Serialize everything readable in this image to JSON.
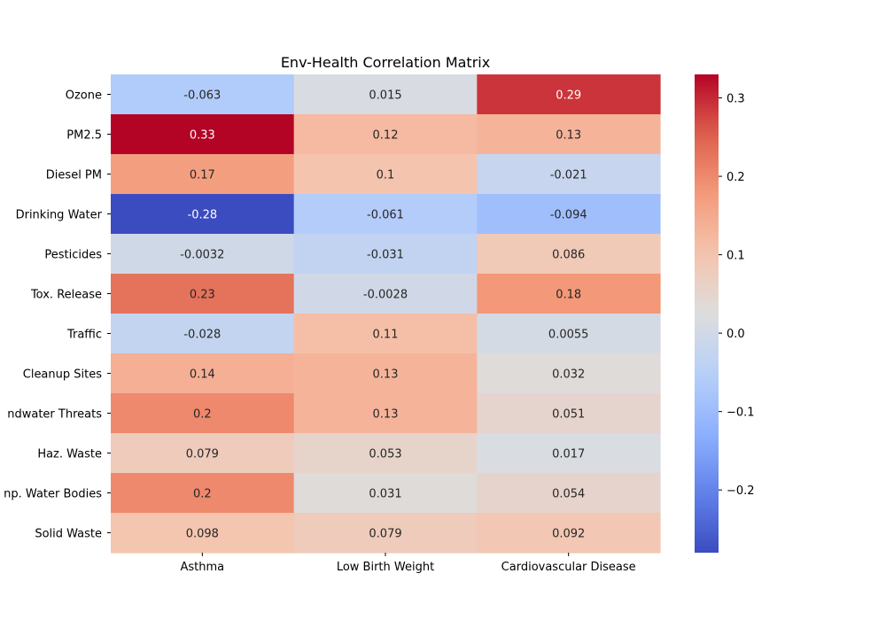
{
  "chart_data": {
    "type": "heatmap",
    "title": "Env-Health Correlation Matrix",
    "rows": [
      "Ozone",
      "PM2.5",
      "Diesel PM",
      "Drinking Water",
      "Pesticides",
      "Tox. Release",
      "Traffic",
      "Cleanup Sites",
      "Groundwater Threats",
      "Haz. Waste",
      "Imp. Water Bodies",
      "Solid Waste"
    ],
    "row_labels_display": [
      "Ozone",
      "PM2.5",
      "Diesel PM",
      "Drinking Water",
      "Pesticides",
      "Tox. Release",
      "Traffic",
      "Cleanup Sites",
      "ndwater Threats",
      "Haz. Waste",
      "np. Water Bodies",
      "Solid Waste"
    ],
    "columns": [
      "Asthma",
      "Low Birth Weight",
      "Cardiovascular Disease"
    ],
    "values": [
      [
        -0.063,
        0.015,
        0.29
      ],
      [
        0.33,
        0.12,
        0.13
      ],
      [
        0.17,
        0.1,
        -0.021
      ],
      [
        -0.28,
        -0.061,
        -0.094
      ],
      [
        -0.0032,
        -0.031,
        0.086
      ],
      [
        0.23,
        -0.0028,
        0.18
      ],
      [
        -0.028,
        0.11,
        0.0055
      ],
      [
        0.14,
        0.13,
        0.032
      ],
      [
        0.2,
        0.13,
        0.051
      ],
      [
        0.079,
        0.053,
        0.017
      ],
      [
        0.2,
        0.031,
        0.054
      ],
      [
        0.098,
        0.079,
        0.092
      ]
    ],
    "labels": [
      [
        "-0.063",
        "0.015",
        "0.29"
      ],
      [
        "0.33",
        "0.12",
        "0.13"
      ],
      [
        "0.17",
        "0.1",
        "-0.021"
      ],
      [
        "-0.28",
        "-0.061",
        "-0.094"
      ],
      [
        "-0.0032",
        "-0.031",
        "0.086"
      ],
      [
        "0.23",
        "-0.0028",
        "0.18"
      ],
      [
        "-0.028",
        "0.11",
        "0.0055"
      ],
      [
        "0.14",
        "0.13",
        "0.032"
      ],
      [
        "0.2",
        "0.13",
        "0.051"
      ],
      [
        "0.079",
        "0.053",
        "0.017"
      ],
      [
        "0.2",
        "0.031",
        "0.054"
      ],
      [
        "0.098",
        "0.079",
        "0.092"
      ]
    ],
    "colormap": "coolwarm",
    "vmin": -0.28,
    "vmax": 0.33,
    "colorbar": {
      "ticks": [
        -0.2,
        -0.1,
        0.0,
        0.1,
        0.2,
        0.3
      ],
      "tick_labels": [
        "−0.2",
        "−0.1",
        "0.0",
        "0.1",
        "0.2",
        "0.3"
      ],
      "position": "right"
    },
    "grid": false
  }
}
